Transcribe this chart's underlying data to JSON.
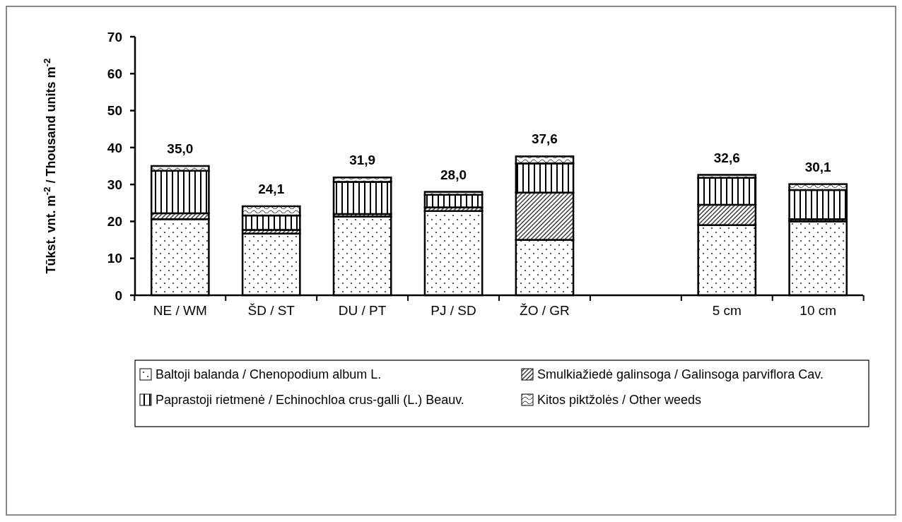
{
  "chart_data": {
    "type": "bar",
    "stacked": true,
    "ylabel": "Tūkst. vnt. m$^{-2}$ / Thousand units m$^{-2}$",
    "categories": [
      "NE / WM",
      "ŠD / ST",
      "DU / PT",
      "PJ / SD",
      "ŽO / GR",
      null,
      "5 cm",
      "10 cm"
    ],
    "series": [
      {
        "name": "Baltoji balanda / Chenopodium album L.",
        "color": "#000000",
        "values": [
          20.6,
          16.7,
          21.3,
          22.8,
          15.0,
          null,
          19.0,
          20.0
        ]
      },
      {
        "name": "Smulkiažiedė galinsoga / Galinsoga parviflora Cav.",
        "color": "#000000",
        "values": [
          1.6,
          1.0,
          0.7,
          1.0,
          12.8,
          null,
          5.5,
          0.6
        ]
      },
      {
        "name": "Paprastoji rietmenė / Echinochloa crus-galli (L.) Beauv.",
        "color": "#000000",
        "values": [
          11.5,
          3.9,
          8.7,
          3.4,
          7.9,
          null,
          7.3,
          7.9
        ]
      },
      {
        "name": "Kitos piktžolės / Other weeds",
        "color": "#000000",
        "values": [
          1.3,
          2.5,
          1.2,
          0.8,
          1.9,
          null,
          0.8,
          1.6
        ]
      }
    ],
    "totals": [
      "35,0",
      "24,1",
      "31,9",
      "28,0",
      "37,6",
      null,
      "32,6",
      "30,1"
    ],
    "ylim": [
      0,
      70
    ],
    "yticks": [
      0,
      10,
      20,
      30,
      40,
      50,
      60,
      70
    ],
    "grid": false,
    "legend": "bottom"
  }
}
